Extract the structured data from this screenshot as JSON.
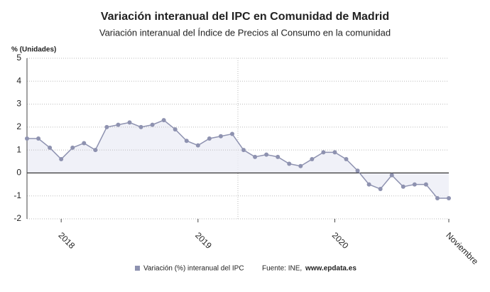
{
  "chart_data": {
    "type": "line",
    "title": "Variación interanual del IPC en Comunidad de Madrid",
    "subtitle": "Variación interanual del Índice de Precios al Consumo en la comunidad",
    "y_label": "% (Unidades)",
    "categories": [
      null,
      null,
      null,
      "2018",
      null,
      null,
      null,
      null,
      null,
      null,
      null,
      null,
      null,
      null,
      null,
      "2019",
      null,
      null,
      null,
      null,
      null,
      null,
      null,
      null,
      null,
      null,
      null,
      "2020",
      null,
      null,
      null,
      null,
      null,
      null,
      null,
      null,
      null,
      "Noviembre"
    ],
    "series": [
      {
        "name": "Variación (%) interanual del IPC",
        "color": "#8e92b0",
        "values": [
          1.5,
          1.5,
          1.1,
          0.6,
          1.1,
          1.3,
          1.0,
          2.0,
          2.1,
          2.2,
          2.0,
          2.1,
          2.3,
          1.9,
          1.4,
          1.2,
          1.5,
          1.6,
          1.7,
          1.0,
          0.7,
          0.8,
          0.7,
          0.4,
          0.3,
          0.6,
          0.9,
          0.9,
          0.6,
          0.1,
          -0.5,
          -0.7,
          -0.1,
          -0.6,
          -0.5,
          -0.5,
          -1.1,
          -1.1
        ]
      }
    ],
    "ylim": [
      -2,
      5
    ],
    "yticks": [
      -2,
      -1,
      0,
      1,
      2,
      3,
      4,
      5
    ],
    "grid": true,
    "source_prefix": "Fuente: INE,",
    "source_site": "www.epdata.es"
  }
}
